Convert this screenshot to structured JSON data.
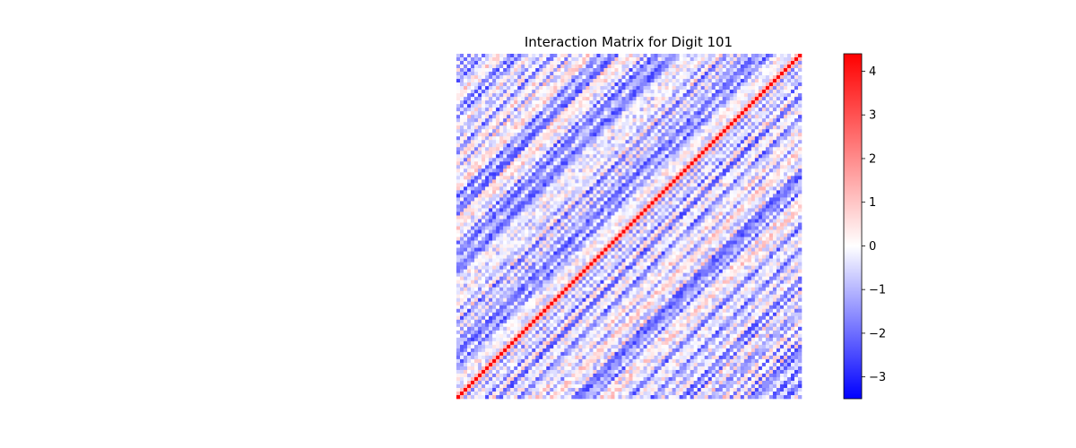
{
  "chart_data": {
    "type": "heatmap",
    "title": "Interaction Matrix for Digit 101",
    "xlabel": "",
    "ylabel": "",
    "axes_visible": false,
    "grid": false,
    "matrix_size": 96,
    "colormap": {
      "name": "bwr",
      "low_color": "#0000ff",
      "mid_color": "#ffffff",
      "high_color": "#ff0000"
    },
    "value_range": [
      -3.5,
      4.4
    ],
    "colorbar": {
      "location": "right",
      "ticks": [
        -3,
        -2,
        -1,
        0,
        1,
        2,
        3,
        4
      ],
      "tick_labels": [
        "−3",
        "−2",
        "−1",
        "0",
        "1",
        "2",
        "3",
        "4"
      ]
    },
    "structure": "Toeplitz-like diagonal stripes; bright red main diagonal from bottom-left to top-right; mostly light blue (-1 to 0) with scattered light red cells"
  }
}
